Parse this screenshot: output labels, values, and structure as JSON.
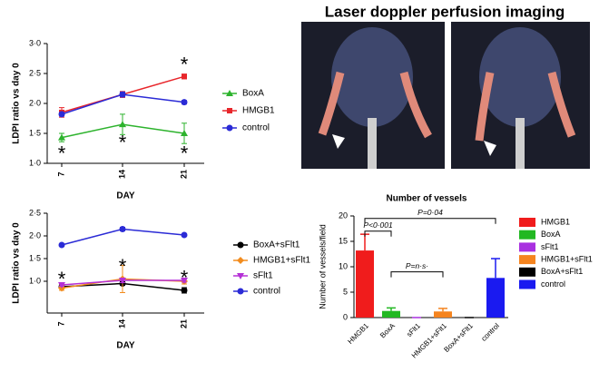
{
  "image_panel": {
    "title": "Laser doppler perfusion imaging"
  },
  "chart_data": [
    {
      "type": "line",
      "ylabel": "LDPI ratio vs day 0",
      "xlabel": "DAY",
      "categories": [
        "7",
        "14",
        "21"
      ],
      "ylim": [
        1,
        3
      ],
      "yticks": [
        {
          "value": 1,
          "label": "1·0"
        },
        {
          "value": 1.5,
          "label": "1·5"
        },
        {
          "value": 2,
          "label": "2·0"
        },
        {
          "value": 2.5,
          "label": "2·5"
        },
        {
          "value": 3,
          "label": "3·0"
        }
      ],
      "series": [
        {
          "name": "BoxA",
          "color": "#2db32d",
          "marker": "triangle",
          "values": [
            1.43,
            1.65,
            1.5
          ],
          "errors": [
            0.07,
            0.17,
            0.17
          ]
        },
        {
          "name": "HMGB1",
          "color": "#e8262b",
          "marker": "square",
          "values": [
            1.85,
            2.15,
            2.45
          ],
          "errors": [
            0.08,
            0.05,
            0.04
          ]
        },
        {
          "name": "control",
          "color": "#2b2bd6",
          "marker": "circle",
          "values": [
            1.82,
            2.15,
            2.02
          ],
          "errors": [
            0.03,
            0.04,
            0.03
          ]
        }
      ],
      "annotations": [
        {
          "text": "*",
          "x": "7",
          "y": 1.22
        },
        {
          "text": "*",
          "x": "14",
          "y": 1.4
        },
        {
          "text": "*",
          "x": "21",
          "y": 2.7
        },
        {
          "text": "*",
          "x": "21",
          "y": 1.22
        }
      ]
    },
    {
      "type": "line",
      "ylabel": "LDPI ratio vs day 0",
      "xlabel": "DAY",
      "categories": [
        "7",
        "14",
        "21"
      ],
      "ylim": [
        0.3,
        2.5
      ],
      "yticks": [
        {
          "value": 1,
          "label": "1·0"
        },
        {
          "value": 1.5,
          "label": "1·5"
        },
        {
          "value": 2,
          "label": "2·0"
        },
        {
          "value": 2.5,
          "label": "2·5"
        }
      ],
      "series": [
        {
          "name": "BoxA+sFlt1",
          "color": "#000000",
          "marker": "circle",
          "values": [
            0.88,
            0.95,
            0.8
          ],
          "errors": [
            0.04,
            0.04,
            0.06
          ]
        },
        {
          "name": "HMGB1+sFlt1",
          "color": "#f28c1e",
          "marker": "diamond",
          "values": [
            0.85,
            1.05,
            1.0
          ],
          "errors": [
            0.05,
            0.3,
            0.06
          ]
        },
        {
          "name": "sFlt1",
          "color": "#b530d6",
          "marker": "triangle-down",
          "values": [
            0.92,
            1.02,
            1.02
          ],
          "errors": [
            0.03,
            0.05,
            0.04
          ]
        },
        {
          "name": "control",
          "color": "#2b2bd6",
          "marker": "circle",
          "values": [
            1.8,
            2.15,
            2.02
          ],
          "errors": [
            0.02,
            0.04,
            0.03
          ]
        }
      ],
      "annotations": [
        {
          "text": "*",
          "x": "7",
          "y": 1.12
        },
        {
          "text": "*",
          "x": "14",
          "y": 1.4
        },
        {
          "text": "*",
          "x": "21",
          "y": 1.15
        }
      ]
    },
    {
      "type": "bar",
      "title": "Number of vessels",
      "ylabel": "Number of vessels/field",
      "categories": [
        "HMGB1",
        "BoxA",
        "sFlt1",
        "HMGB1+sFlt1",
        "BoxA+sFlt1",
        "control"
      ],
      "values": [
        13.2,
        1.3,
        0,
        1.2,
        0,
        7.8
      ],
      "errors": [
        3.2,
        0.6,
        0,
        0.6,
        0,
        3.8
      ],
      "colors": [
        "#f01c1c",
        "#22b822",
        "#a930e0",
        "#f5841f",
        "#000000",
        "#1a1af0"
      ],
      "ylim": [
        0,
        20
      ],
      "yticks": [
        0,
        5,
        10,
        15,
        20
      ],
      "brackets": [
        {
          "text": "P<0·001",
          "from": "HMGB1",
          "to": "BoxA",
          "y": 17
        },
        {
          "text": "P=0·04",
          "from": "HMGB1",
          "to": "control",
          "y": 19.5
        },
        {
          "text": "P=n·s·",
          "from": "BoxA",
          "to": "HMGB1+sFlt1",
          "y": 9
        }
      ]
    }
  ]
}
